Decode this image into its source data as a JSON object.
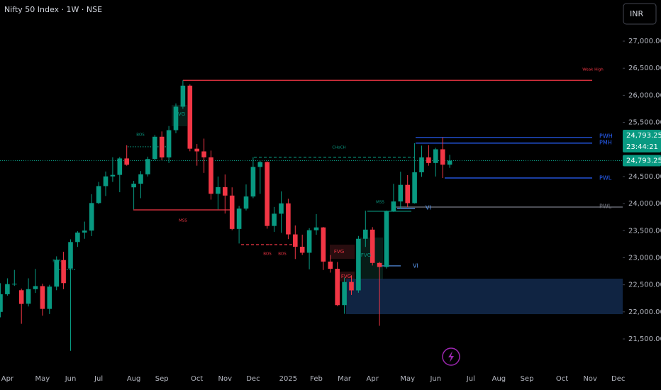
{
  "chart_data": {
    "type": "candlestick",
    "title": "Nifty 50 Index · 1W · NSE",
    "currency": "INR",
    "categories": [
      null,
      "Apr",
      null,
      null,
      null,
      null,
      "May",
      null,
      null,
      null,
      "Jun",
      null,
      null,
      null,
      "Jul",
      null,
      null,
      null,
      null,
      "Aug",
      null,
      null,
      null,
      "Sep",
      null,
      null,
      null,
      null,
      "Oct",
      null,
      null,
      null,
      "Nov",
      null,
      null,
      null,
      "Dec",
      null,
      null,
      null,
      null,
      "2025",
      null,
      null,
      null,
      "Feb",
      null,
      null,
      null,
      "Mar",
      null,
      null,
      null,
      "Apr",
      null,
      null,
      null,
      null,
      "May",
      null,
      null,
      null,
      "Jun",
      null,
      null,
      null,
      null,
      "Jul",
      null,
      null,
      null,
      "Aug",
      null,
      null,
      null,
      "Sep",
      null,
      null,
      null,
      null,
      "Oct",
      null,
      null,
      null,
      "Nov",
      null,
      null,
      null,
      "Dec",
      null
    ],
    "open": [
      22000,
      22326,
      22513,
      22400,
      22150,
      22420,
      22476,
      22055,
      22466,
      22957,
      22800,
      23290,
      23465,
      23501,
      24010,
      24323,
      24502,
      24530,
      24834,
      24300,
      24367,
      24541,
      24823,
      25235,
      24852,
      25356,
      25790,
      26178,
      25014,
      24964,
      24854,
      24181,
      24304,
      24148,
      23532,
      23907,
      24131,
      24677,
      24768,
      23587,
      23813,
      24004,
      23431,
      23203,
      23092,
      23508,
      23560,
      22929,
      22796,
      22125,
      22553,
      22397,
      23350,
      23519,
      22904,
      22829,
      23851,
      24039,
      24346,
      24008,
      24578,
      24853,
      24750,
      25003,
      24718,
      null,
      null,
      null,
      null,
      null,
      null,
      null,
      null,
      null,
      null,
      null,
      null,
      null,
      null,
      null,
      null,
      null,
      null,
      null,
      null,
      null,
      null,
      null,
      null,
      null
    ],
    "high": [
      22530,
      22620,
      22775,
      22430,
      22620,
      22794,
      22520,
      22500,
      23026,
      23110,
      23340,
      23490,
      23667,
      24174,
      24400,
      24592,
      24855,
      24861,
      25078,
      24420,
      24600,
      24867,
      25268,
      25333,
      25433,
      25849,
      26277,
      26200,
      25100,
      25200,
      24978,
      24500,
      24537,
      24300,
      23956,
      24354,
      24857,
      24792,
      24781,
      23938,
      24226,
      24089,
      23596,
      23426,
      23546,
      23807,
      23568,
      23049,
      22921,
      22633,
      22676,
      23402,
      23869,
      23565,
      22923,
      23872,
      24365,
      24589,
      24526,
      25116,
      25070,
      25079,
      25029,
      25222,
      24900,
      null,
      null,
      null,
      null,
      null,
      null,
      null,
      null,
      null,
      null,
      null,
      null,
      null,
      null,
      null,
      null,
      null,
      null,
      null,
      null,
      null,
      null,
      null,
      null,
      null
    ],
    "low": [
      21900,
      22300,
      22480,
      21780,
      22100,
      22350,
      21930,
      21960,
      22400,
      22420,
      21281,
      23200,
      23350,
      23400,
      23990,
      24140,
      24400,
      24210,
      24700,
      23893,
      24100,
      24500,
      24800,
      24800,
      24750,
      25300,
      25750,
      24966,
      24700,
      24567,
      24073,
      23893,
      23816,
      23509,
      23263,
      23873,
      24100,
      24180,
      23537,
      23478,
      23460,
      23344,
      22976,
      23050,
      22786,
      23423,
      22774,
      22725,
      22105,
      21964,
      22314,
      22353,
      23200,
      22857,
      21743,
      22800,
      23847,
      23900,
      23935,
      24000,
      24494,
      24700,
      24500,
      24473,
      24660,
      null,
      null,
      null,
      null,
      null,
      null,
      null,
      null,
      null,
      null,
      null,
      null,
      null,
      null,
      null,
      null,
      null,
      null,
      null,
      null,
      null,
      null,
      null,
      null,
      null
    ],
    "close": [
      22326,
      22513,
      22519,
      22147,
      22420,
      22476,
      22055,
      22466,
      22957,
      22531,
      23290,
      23465,
      23501,
      24010,
      24323,
      24502,
      24530,
      24834,
      24717,
      24367,
      24541,
      24823,
      25235,
      24852,
      25356,
      25790,
      26178,
      25014,
      24964,
      24854,
      24181,
      24304,
      24148,
      23532,
      23907,
      24131,
      24677,
      24768,
      23587,
      23813,
      24004,
      23431,
      23203,
      23092,
      23508,
      23560,
      22929,
      22796,
      22125,
      22553,
      22397,
      23350,
      23519,
      22904,
      22829,
      23851,
      24039,
      24346,
      24008,
      24578,
      24853,
      24750,
      25003,
      24718,
      24793.25,
      null,
      null,
      null,
      null,
      null,
      null,
      null,
      null,
      null,
      null,
      null,
      null,
      null,
      null,
      null,
      null,
      null,
      null,
      null,
      null,
      null,
      null,
      null,
      null,
      null
    ],
    "up_color": "#089981",
    "down_color": "#f23645",
    "ylim": [
      20950,
      27760
    ],
    "yticks": [
      {
        "value": 27000,
        "label": "27,000.00"
      },
      {
        "value": 26500,
        "label": "26,500.00"
      },
      {
        "value": 26000,
        "label": "26,000.00"
      },
      {
        "value": 25500,
        "label": "25,500.00"
      },
      {
        "value": 24500,
        "label": "24,500.00"
      },
      {
        "value": 24000,
        "label": "24,000.00"
      },
      {
        "value": 23500,
        "label": "23,500.00"
      },
      {
        "value": 23000,
        "label": "23,000.00"
      },
      {
        "value": 22500,
        "label": "22,500.00"
      },
      {
        "value": 22000,
        "label": "22,000.00"
      },
      {
        "value": 21500,
        "label": "21,500.00"
      }
    ],
    "last_price": {
      "value": 24793.25,
      "label": "24,793.25"
    },
    "countdown": "23:44:21",
    "levels": [
      {
        "label": "Weak High",
        "value": 26277,
        "color": "#f23645",
        "dash": "solid"
      },
      {
        "label": "PWH",
        "value": 25222,
        "color": "#2962ff",
        "dash": "solid"
      },
      {
        "label": "PMH",
        "value": 25116,
        "color": "#2962ff",
        "dash": "solid"
      },
      {
        "label": "PWL",
        "value": 24473,
        "color": "#2962ff",
        "dash": "solid"
      },
      {
        "label": "PWL",
        "value": 23936,
        "color": "#787b86",
        "dash": "solid"
      },
      {
        "label": "CHoCH",
        "value": 24855,
        "color": "#089981",
        "dash": "dashed"
      },
      {
        "label": "BOS",
        "value": 25050,
        "color": "#089981",
        "dash": "dotted"
      },
      {
        "label": "MSS",
        "value": 23884,
        "color": "#f23645",
        "dash": "solid"
      },
      {
        "label": "BOS",
        "value": 23242,
        "color": "#f23645",
        "dash": "dashed"
      },
      {
        "label": "BOS",
        "value": 23242,
        "color": "#f23645",
        "dash": "dashed"
      },
      {
        "label": "MSS",
        "value": 23858,
        "color": "#089981",
        "dash": "solid"
      },
      {
        "label": "BOS",
        "value": 22780,
        "color": "#089981",
        "dash": "dotted"
      },
      {
        "label": "VI",
        "value": 22850,
        "color": "#5b9cf6",
        "dash": "solid"
      },
      {
        "label": "VI",
        "value": 23910,
        "color": "#5b9cf6",
        "dash": "solid"
      }
    ],
    "zones": [
      {
        "low": 21958,
        "high": 22613,
        "color": "#132a4d"
      }
    ],
    "annotations": [
      {
        "text": "FVG",
        "color": "#f23645"
      },
      {
        "text": "FVG",
        "color": "#089981"
      },
      {
        "text": "FVG",
        "color": "#f23645"
      },
      {
        "text": "FVG",
        "color": "#089981"
      }
    ]
  }
}
